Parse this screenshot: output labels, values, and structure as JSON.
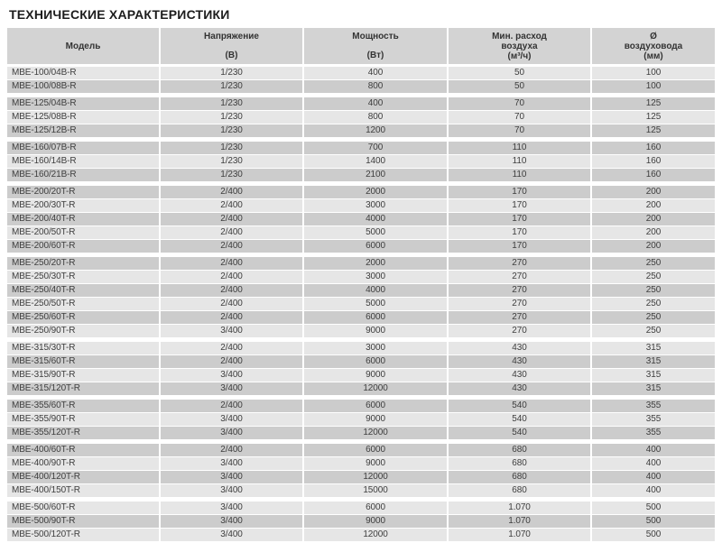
{
  "page": {
    "title": "ТЕХНИЧЕСКИЕ ХАРАКТЕРИСТИКИ"
  },
  "table": {
    "colors": {
      "header_bg": "#d3d3d3",
      "row_light": "#e6e6e6",
      "row_dark": "#cccccc",
      "separator": "#ffffff",
      "text": "#3e3e3e"
    },
    "columns": [
      {
        "label": "Модель",
        "unit": ""
      },
      {
        "label": "Напряжение",
        "unit": "(В)"
      },
      {
        "label": "Мощность",
        "unit": "(Вт)"
      },
      {
        "label": "Мин. расход\nвоздуха",
        "unit": "(м³/ч)"
      },
      {
        "label": "Ø\nвоздуховода",
        "unit": "(мм)"
      }
    ],
    "groups": [
      {
        "rows": [
          [
            "MBE-100/04B-R",
            "1/230",
            "400",
            "50",
            "100"
          ],
          [
            "MBE-100/08B-R",
            "1/230",
            "800",
            "50",
            "100"
          ]
        ]
      },
      {
        "rows": [
          [
            "MBE-125/04B-R",
            "1/230",
            "400",
            "70",
            "125"
          ],
          [
            "MBE-125/08B-R",
            "1/230",
            "800",
            "70",
            "125"
          ],
          [
            "MBE-125/12B-R",
            "1/230",
            "1200",
            "70",
            "125"
          ]
        ]
      },
      {
        "rows": [
          [
            "MBE-160/07B-R",
            "1/230",
            "700",
            "110",
            "160"
          ],
          [
            "MBE-160/14B-R",
            "1/230",
            "1400",
            "110",
            "160"
          ],
          [
            "MBE-160/21B-R",
            "1/230",
            "2100",
            "110",
            "160"
          ]
        ]
      },
      {
        "rows": [
          [
            "MBE-200/20T-R",
            "2/400",
            "2000",
            "170",
            "200"
          ],
          [
            "MBE-200/30T-R",
            "2/400",
            "3000",
            "170",
            "200"
          ],
          [
            "MBE-200/40T-R",
            "2/400",
            "4000",
            "170",
            "200"
          ],
          [
            "MBE-200/50T-R",
            "2/400",
            "5000",
            "170",
            "200"
          ],
          [
            "MBE-200/60T-R",
            "2/400",
            "6000",
            "170",
            "200"
          ]
        ]
      },
      {
        "rows": [
          [
            "MBE-250/20T-R",
            "2/400",
            "2000",
            "270",
            "250"
          ],
          [
            "MBE-250/30T-R",
            "2/400",
            "3000",
            "270",
            "250"
          ],
          [
            "MBE-250/40T-R",
            "2/400",
            "4000",
            "270",
            "250"
          ],
          [
            "MBE-250/50T-R",
            "2/400",
            "5000",
            "270",
            "250"
          ],
          [
            "MBE-250/60T-R",
            "2/400",
            "6000",
            "270",
            "250"
          ],
          [
            "MBE-250/90T-R",
            "3/400",
            "9000",
            "270",
            "250"
          ]
        ]
      },
      {
        "rows": [
          [
            "MBE-315/30T-R",
            "2/400",
            "3000",
            "430",
            "315"
          ],
          [
            "MBE-315/60T-R",
            "2/400",
            "6000",
            "430",
            "315"
          ],
          [
            "MBE-315/90T-R",
            "3/400",
            "9000",
            "430",
            "315"
          ],
          [
            "MBE-315/120T-R",
            "3/400",
            "12000",
            "430",
            "315"
          ]
        ]
      },
      {
        "rows": [
          [
            "MBE-355/60T-R",
            "2/400",
            "6000",
            "540",
            "355"
          ],
          [
            "MBE-355/90T-R",
            "3/400",
            "9000",
            "540",
            "355"
          ],
          [
            "MBE-355/120T-R",
            "3/400",
            "12000",
            "540",
            "355"
          ]
        ]
      },
      {
        "rows": [
          [
            "MBE-400/60T-R",
            "2/400",
            "6000",
            "680",
            "400"
          ],
          [
            "MBE-400/90T-R",
            "3/400",
            "9000",
            "680",
            "400"
          ],
          [
            "MBE-400/120T-R",
            "3/400",
            "12000",
            "680",
            "400"
          ],
          [
            "MBE-400/150T-R",
            "3/400",
            "15000",
            "680",
            "400"
          ]
        ]
      },
      {
        "rows": [
          [
            "MBE-500/60T-R",
            "3/400",
            "6000",
            "1.070",
            "500"
          ],
          [
            "MBE-500/90T-R",
            "3/400",
            "9000",
            "1.070",
            "500"
          ],
          [
            "MBE-500/120T-R",
            "3/400",
            "12000",
            "1.070",
            "500"
          ]
        ]
      }
    ]
  }
}
